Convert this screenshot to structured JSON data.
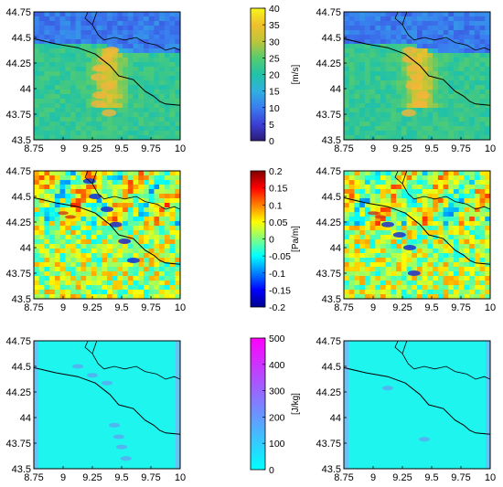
{
  "chart_data": {
    "type": "heatmap",
    "rows": [
      {
        "field": "wind_speed",
        "panels": [
          "left",
          "right"
        ],
        "xlim": [
          8.75,
          10
        ],
        "ylim": [
          43.5,
          44.75
        ],
        "xticks": [
          "8.75",
          "9",
          "9.25",
          "9.5",
          "9.75",
          "10"
        ],
        "yticks": [
          "43.5",
          "43.75",
          "44",
          "44.25",
          "44.5",
          "44.75"
        ],
        "colorbar": {
          "unit": "[m/s]",
          "ticks": [
            "0",
            "5",
            "10",
            "15",
            "20",
            "25",
            "30",
            "35",
            "40"
          ],
          "range": [
            0,
            40
          ],
          "colors": [
            "#2c1a78",
            "#3b3fd6",
            "#3a7df0",
            "#2fb0df",
            "#20c2a8",
            "#56cc6e",
            "#bec53a",
            "#f0c02c",
            "#f7f51c"
          ]
        }
      },
      {
        "field": "pressure_gradient",
        "panels": [
          "left",
          "right"
        ],
        "xlim": [
          8.75,
          10
        ],
        "ylim": [
          43.5,
          44.75
        ],
        "xticks": [
          "8.75",
          "9",
          "9.25",
          "9.5",
          "9.75",
          "10"
        ],
        "yticks": [
          "43.5",
          "43.75",
          "44",
          "44.25",
          "44.5",
          "44.75"
        ],
        "colorbar": {
          "unit": "[Pa/m]",
          "ticks": [
            "0.2",
            "0.15",
            "0.1",
            "0.05",
            "0",
            "-0.05",
            "-0.1",
            "-0.15",
            "-0.2"
          ],
          "range": [
            -0.2,
            0.2
          ],
          "colors": [
            "#00008f",
            "#0000ff",
            "#0080ff",
            "#00ffff",
            "#80ff80",
            "#ffff00",
            "#ff8000",
            "#ff0000",
            "#800000"
          ]
        }
      },
      {
        "field": "energy",
        "panels": [
          "left",
          "right"
        ],
        "xlim": [
          8.75,
          10
        ],
        "ylim": [
          43.5,
          44.75
        ],
        "xticks": [
          "8.75",
          "9",
          "9.25",
          "9.5",
          "9.75",
          "10"
        ],
        "yticks": [
          "43.5",
          "43.75",
          "44",
          "44.25",
          "44.5",
          "44.75"
        ],
        "colorbar": {
          "unit": "[J/kg]",
          "ticks": [
            "0",
            "100",
            "200",
            "300",
            "400",
            "500"
          ],
          "range": [
            0,
            500
          ],
          "colors": [
            "#00ffff",
            "#33ccff",
            "#6699ff",
            "#9966ff",
            "#cc33ff",
            "#ff00ff"
          ]
        }
      }
    ]
  }
}
